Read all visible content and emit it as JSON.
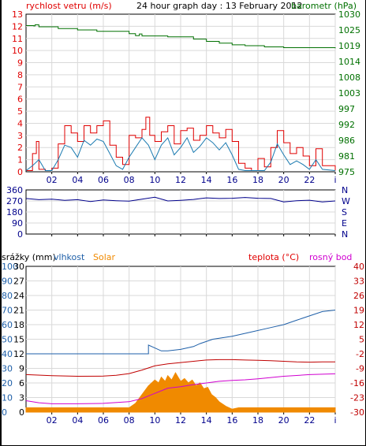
{
  "colors": {
    "red": "#e00000",
    "teal": "#1a7ab0",
    "green": "#007000",
    "navy": "#00008b",
    "axis_blue": "#1e5fa8",
    "dark_red": "#c00000",
    "magenta": "#d000d0",
    "orange": "#f08a00",
    "grid": "#d9d9d9"
  },
  "chart_data": [
    {
      "type": "line",
      "title": "24 hour graph day : 13 February 2012",
      "left_label": "rychlost vetru (m/s)",
      "right_label": "barometr (hPa)",
      "x_ticks": [
        "02",
        "04",
        "06",
        "08",
        "10",
        "12",
        "14",
        "16",
        "18",
        "20",
        "22",
        "i"
      ],
      "y_left_ticks": [
        "0",
        "1",
        "2",
        "3",
        "4",
        "5",
        "6",
        "7",
        "8",
        "9",
        "10",
        "11",
        "12",
        "13"
      ],
      "y_right_ticks": [
        "975",
        "981",
        "986",
        "992",
        "997",
        "1003",
        "1008",
        "1014",
        "1019",
        "1025",
        "1030"
      ],
      "xlim": [
        0,
        24
      ],
      "ylim_left": [
        0,
        13
      ],
      "ylim_right": [
        975,
        1030
      ],
      "series": [
        {
          "role": "wind gust",
          "axis": "left",
          "values_by_hour": [
            [
              0,
              0.1
            ],
            [
              0.5,
              1.5
            ],
            [
              0.8,
              2.5
            ],
            [
              1.0,
              0.2
            ],
            [
              1.5,
              0.1
            ],
            [
              2.0,
              0.3
            ],
            [
              2.5,
              2.3
            ],
            [
              3.0,
              3.8
            ],
            [
              3.5,
              3.2
            ],
            [
              4.0,
              2.5
            ],
            [
              4.5,
              3.8
            ],
            [
              5.0,
              3.2
            ],
            [
              5.5,
              3.8
            ],
            [
              6.0,
              4.2
            ],
            [
              6.5,
              2.2
            ],
            [
              7.0,
              1.2
            ],
            [
              7.5,
              0.6
            ],
            [
              8.0,
              3.0
            ],
            [
              8.5,
              2.8
            ],
            [
              9.0,
              3.5
            ],
            [
              9.3,
              4.5
            ],
            [
              9.6,
              3.0
            ],
            [
              10.0,
              2.5
            ],
            [
              10.5,
              3.3
            ],
            [
              11.0,
              3.8
            ],
            [
              11.5,
              2.3
            ],
            [
              12.0,
              3.4
            ],
            [
              12.5,
              3.6
            ],
            [
              13.0,
              2.6
            ],
            [
              13.5,
              3.0
            ],
            [
              14.0,
              3.8
            ],
            [
              14.5,
              3.2
            ],
            [
              15.0,
              2.8
            ],
            [
              15.5,
              3.5
            ],
            [
              16.0,
              2.5
            ],
            [
              16.5,
              0.7
            ],
            [
              17.0,
              0.3
            ],
            [
              17.5,
              0.1
            ],
            [
              18.0,
              1.1
            ],
            [
              18.5,
              0.4
            ],
            [
              19.0,
              2.0
            ],
            [
              19.5,
              3.4
            ],
            [
              20.0,
              2.4
            ],
            [
              20.5,
              1.5
            ],
            [
              21.0,
              2.0
            ],
            [
              21.5,
              1.3
            ],
            [
              22.0,
              0.5
            ],
            [
              22.5,
              1.9
            ],
            [
              23.0,
              0.5
            ],
            [
              24.0,
              0.1
            ]
          ]
        },
        {
          "role": "wind average",
          "axis": "left",
          "values_by_hour": [
            [
              0,
              0.1
            ],
            [
              0.5,
              0.5
            ],
            [
              1.0,
              1.0
            ],
            [
              1.5,
              0.1
            ],
            [
              2.0,
              0.1
            ],
            [
              2.5,
              1.0
            ],
            [
              3.0,
              2.2
            ],
            [
              3.5,
              2.0
            ],
            [
              4.0,
              1.2
            ],
            [
              4.5,
              2.6
            ],
            [
              5.0,
              2.2
            ],
            [
              5.5,
              2.7
            ],
            [
              6.0,
              2.5
            ],
            [
              6.5,
              1.5
            ],
            [
              7.0,
              0.5
            ],
            [
              7.5,
              0.2
            ],
            [
              8.0,
              1.2
            ],
            [
              8.5,
              2.0
            ],
            [
              9.0,
              2.8
            ],
            [
              9.5,
              2.2
            ],
            [
              10.0,
              1.0
            ],
            [
              10.5,
              2.2
            ],
            [
              11.0,
              2.8
            ],
            [
              11.5,
              1.4
            ],
            [
              12.0,
              2.0
            ],
            [
              12.5,
              2.8
            ],
            [
              13.0,
              1.6
            ],
            [
              13.5,
              2.1
            ],
            [
              14.0,
              2.8
            ],
            [
              14.5,
              2.4
            ],
            [
              15.0,
              1.8
            ],
            [
              15.5,
              2.4
            ],
            [
              16.0,
              1.4
            ],
            [
              16.5,
              0.2
            ],
            [
              17.0,
              0.1
            ],
            [
              18.0,
              0.1
            ],
            [
              18.5,
              0.1
            ],
            [
              19.0,
              0.8
            ],
            [
              19.5,
              2.3
            ],
            [
              20.0,
              1.4
            ],
            [
              20.5,
              0.6
            ],
            [
              21.0,
              0.9
            ],
            [
              21.5,
              0.6
            ],
            [
              22.0,
              0.2
            ],
            [
              22.5,
              1.0
            ],
            [
              23.0,
              0.2
            ],
            [
              24.0,
              0.1
            ]
          ]
        },
        {
          "role": "barometric pressure",
          "axis": "right",
          "values_by_hour": [
            [
              0,
              1026.0
            ],
            [
              0.6,
              1025.9
            ],
            [
              0.7,
              1026.3
            ],
            [
              1.0,
              1025.6
            ],
            [
              2.5,
              1025.0
            ],
            [
              4.0,
              1024.5
            ],
            [
              5.5,
              1024.0
            ],
            [
              8.0,
              1023.2
            ],
            [
              8.5,
              1022.5
            ],
            [
              8.8,
              1023.1
            ],
            [
              9.0,
              1022.4
            ],
            [
              11.0,
              1022.1
            ],
            [
              13.0,
              1021.3
            ],
            [
              14.0,
              1020.5
            ],
            [
              15.0,
              1019.9
            ],
            [
              16.0,
              1019.3
            ],
            [
              17.0,
              1019.0
            ],
            [
              18.5,
              1018.6
            ],
            [
              20.0,
              1018.3
            ],
            [
              24.0,
              1018.1
            ]
          ]
        }
      ]
    },
    {
      "type": "line",
      "role": "wind direction",
      "x_ticks": [
        "02",
        "04",
        "06",
        "08",
        "10",
        "12",
        "14",
        "16",
        "18",
        "20",
        "22",
        "i"
      ],
      "y_left_ticks": [
        "0",
        "90",
        "180",
        "270",
        "360"
      ],
      "y_right_ticks": [
        "N",
        "E",
        "S",
        "W",
        "N"
      ],
      "xlim": [
        0,
        24
      ],
      "ylim": [
        0,
        360
      ],
      "values_by_hour": [
        [
          0,
          290
        ],
        [
          1,
          280
        ],
        [
          2,
          285
        ],
        [
          3,
          275
        ],
        [
          4,
          280
        ],
        [
          5,
          265
        ],
        [
          6,
          278
        ],
        [
          7,
          272
        ],
        [
          8,
          268
        ],
        [
          9,
          285
        ],
        [
          10,
          300
        ],
        [
          11,
          270
        ],
        [
          12,
          275
        ],
        [
          13,
          282
        ],
        [
          14,
          295
        ],
        [
          15,
          290
        ],
        [
          16,
          292
        ],
        [
          17,
          298
        ],
        [
          18,
          292
        ],
        [
          19,
          290
        ],
        [
          20,
          262
        ],
        [
          21,
          272
        ],
        [
          22,
          276
        ],
        [
          23,
          262
        ],
        [
          24,
          270
        ]
      ]
    },
    {
      "type": "line",
      "left_label_1": "srážky (mm)",
      "left_label_2": "vlhkost",
      "left_label_3": "Solar",
      "right_label_1": "teplota (°C)",
      "right_label_2": "rosný bod",
      "x_ticks": [
        "02",
        "04",
        "06",
        "08",
        "10",
        "12",
        "14",
        "16",
        "18",
        "20",
        "22",
        "i"
      ],
      "rain_ticks": [
        "0",
        "3",
        "6",
        "9",
        "12",
        "15",
        "18",
        "21",
        "24",
        "27",
        "30"
      ],
      "humidity_ticks": [
        "0",
        "10",
        "20",
        "30",
        "40",
        "50",
        "60",
        "70",
        "80",
        "90",
        "100"
      ],
      "temp_ticks": [
        "-30",
        "-23",
        "-16",
        "-9",
        "-2",
        "5",
        "12",
        "19",
        "26",
        "33",
        "40"
      ],
      "xlim": [
        0,
        24
      ],
      "ylim_humidity": [
        0,
        100
      ],
      "ylim_temp": [
        -30,
        40
      ],
      "series": [
        {
          "role": "humidity",
          "axis": "humidity",
          "values_by_hour": [
            [
              0,
              40
            ],
            [
              9.5,
              40
            ],
            [
              9.5,
              46
            ],
            [
              10.0,
              44
            ],
            [
              10.5,
              42
            ],
            [
              11.0,
              42
            ],
            [
              12.0,
              43
            ],
            [
              13.0,
              45
            ],
            [
              13.5,
              47
            ],
            [
              14.5,
              50
            ],
            [
              16.0,
              52
            ],
            [
              17.5,
              55
            ],
            [
              19.0,
              58
            ],
            [
              20.0,
              60
            ],
            [
              21.0,
              63
            ],
            [
              22.0,
              66
            ],
            [
              23.0,
              69
            ],
            [
              24.0,
              70
            ]
          ]
        },
        {
          "role": "temperature",
          "axis": "temp",
          "values_by_hour": [
            [
              0,
              -12
            ],
            [
              2,
              -12.5
            ],
            [
              4,
              -12.8
            ],
            [
              6,
              -12.7
            ],
            [
              7,
              -12.3
            ],
            [
              8,
              -11.5
            ],
            [
              9,
              -9.8
            ],
            [
              10,
              -7.8
            ],
            [
              11,
              -6.8
            ],
            [
              12,
              -6.2
            ],
            [
              13,
              -5.6
            ],
            [
              14,
              -5.0
            ],
            [
              15,
              -4.8
            ],
            [
              16,
              -4.8
            ],
            [
              17,
              -5.0
            ],
            [
              18,
              -5.1
            ],
            [
              19,
              -5.3
            ],
            [
              20,
              -5.6
            ],
            [
              21,
              -5.9
            ],
            [
              22,
              -6.0
            ],
            [
              23,
              -5.9
            ],
            [
              24,
              -5.9
            ]
          ]
        },
        {
          "role": "dew point",
          "axis": "temp",
          "values_by_hour": [
            [
              0,
              -24.5
            ],
            [
              1,
              -25.5
            ],
            [
              2,
              -26.0
            ],
            [
              4,
              -26.0
            ],
            [
              6,
              -25.8
            ],
            [
              8,
              -25.0
            ],
            [
              9,
              -23.5
            ],
            [
              10,
              -21.0
            ],
            [
              11,
              -18.5
            ],
            [
              12,
              -17.8
            ],
            [
              13,
              -16.8
            ],
            [
              14,
              -16.0
            ],
            [
              15,
              -15.2
            ],
            [
              16,
              -14.8
            ],
            [
              17,
              -14.5
            ],
            [
              18,
              -14.0
            ],
            [
              19,
              -13.4
            ],
            [
              20,
              -12.8
            ],
            [
              21,
              -12.4
            ],
            [
              22,
              -12.0
            ],
            [
              23,
              -11.8
            ],
            [
              24,
              -11.6
            ]
          ]
        },
        {
          "role": "solar radiation",
          "axis": "humidity",
          "values_by_hour": [
            [
              0,
              3
            ],
            [
              8.0,
              3
            ],
            [
              8.5,
              6
            ],
            [
              9.0,
              12
            ],
            [
              9.5,
              18
            ],
            [
              10.0,
              22
            ],
            [
              10.3,
              20
            ],
            [
              10.5,
              24
            ],
            [
              10.8,
              21
            ],
            [
              11.0,
              25
            ],
            [
              11.3,
              22
            ],
            [
              11.6,
              27
            ],
            [
              12.0,
              21
            ],
            [
              12.3,
              23
            ],
            [
              12.6,
              20
            ],
            [
              12.9,
              22
            ],
            [
              13.2,
              18
            ],
            [
              13.5,
              20
            ],
            [
              13.8,
              16
            ],
            [
              14.1,
              17
            ],
            [
              14.4,
              12
            ],
            [
              14.7,
              10
            ],
            [
              15.0,
              7
            ],
            [
              15.5,
              4
            ],
            [
              16.0,
              2
            ],
            [
              16.5,
              3
            ],
            [
              24.0,
              3
            ]
          ]
        }
      ]
    }
  ]
}
